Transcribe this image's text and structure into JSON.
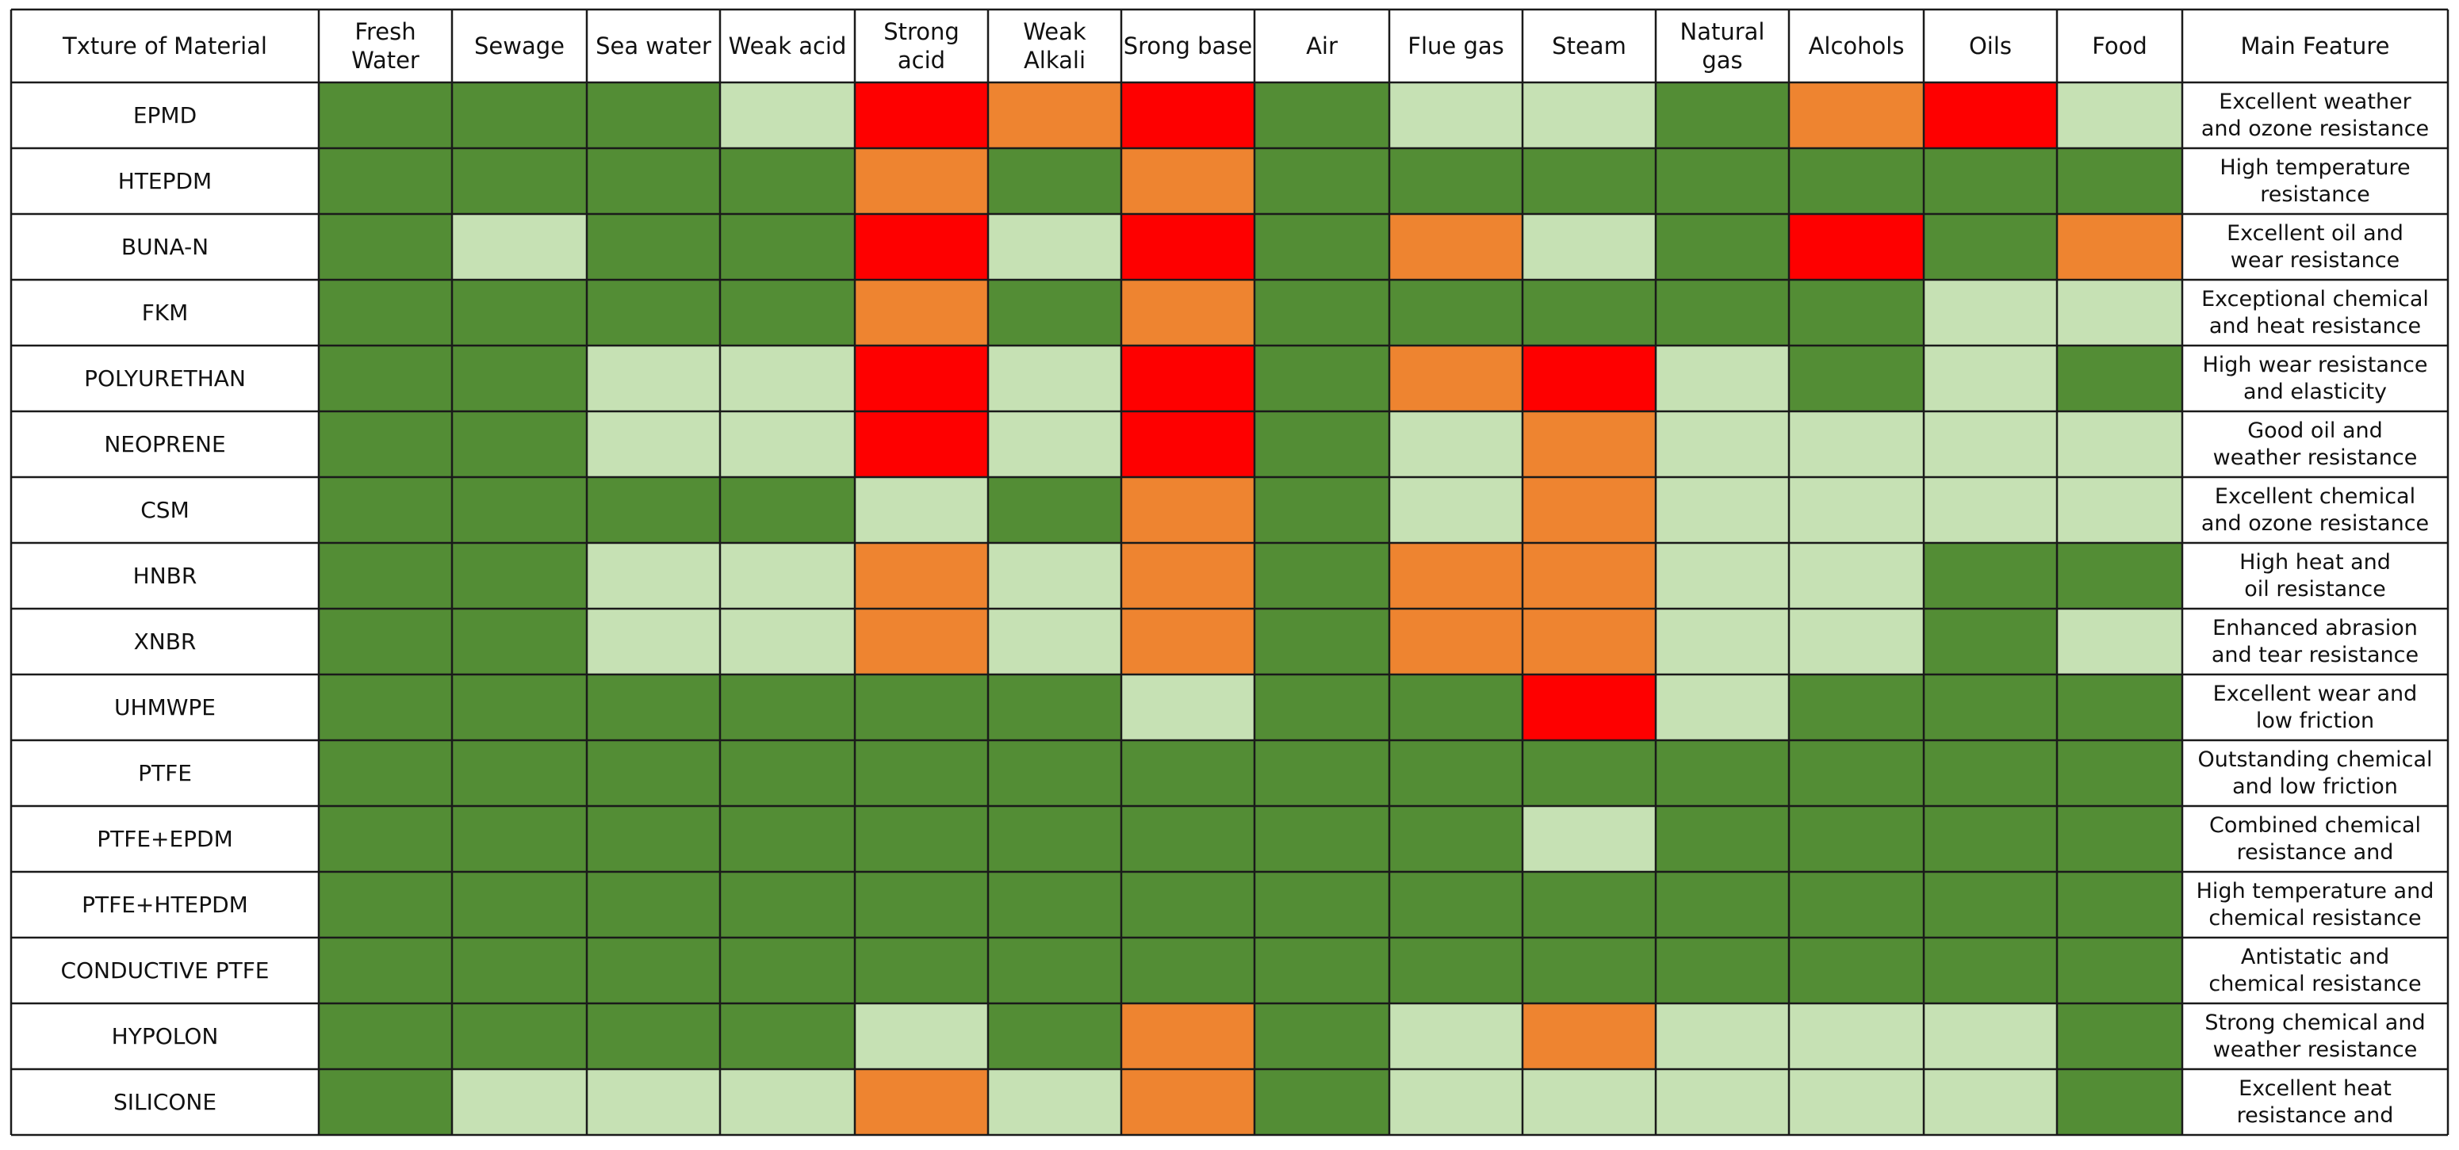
{
  "chart_data": {
    "type": "heatmap",
    "corner_header": "Txture of Material",
    "columns": [
      [
        "Fresh",
        "Water"
      ],
      [
        "Sewage"
      ],
      [
        "Sea water"
      ],
      [
        "Weak acid"
      ],
      [
        "Strong",
        "acid"
      ],
      [
        "Weak",
        "Alkali"
      ],
      [
        "Srong base"
      ],
      [
        "Air"
      ],
      [
        "Flue gas"
      ],
      [
        "Steam"
      ],
      [
        "Natural",
        "gas"
      ],
      [
        "Alcohols"
      ],
      [
        "Oils"
      ],
      [
        "Food"
      ]
    ],
    "feature_header": "Main Feature",
    "legend_colors": {
      "G": "#538d35",
      "L": "#c6e1b4",
      "O": "#ee8430",
      "R": "#fe0000"
    },
    "rows": [
      {
        "material": "EPMD",
        "ratings": [
          "G",
          "G",
          "G",
          "L",
          "R",
          "O",
          "R",
          "G",
          "L",
          "L",
          "G",
          "O",
          "R",
          "L"
        ],
        "feature": [
          "Excellent weather",
          "and ozone resistance"
        ]
      },
      {
        "material": "HTEPDM",
        "ratings": [
          "G",
          "G",
          "G",
          "G",
          "O",
          "G",
          "O",
          "G",
          "G",
          "G",
          "G",
          "G",
          "G",
          "G"
        ],
        "feature": [
          "High temperature",
          "resistance"
        ]
      },
      {
        "material": "BUNA-N",
        "ratings": [
          "G",
          "L",
          "G",
          "G",
          "R",
          "L",
          "R",
          "G",
          "O",
          "L",
          "G",
          "R",
          "G",
          "O"
        ],
        "feature": [
          "Excellent oil and",
          "wear resistance"
        ]
      },
      {
        "material": "FKM",
        "ratings": [
          "G",
          "G",
          "G",
          "G",
          "O",
          "G",
          "O",
          "G",
          "G",
          "G",
          "G",
          "G",
          "L",
          "L"
        ],
        "feature": [
          "Exceptional chemical",
          "and heat resistance"
        ]
      },
      {
        "material": "POLYURETHAN",
        "ratings": [
          "G",
          "G",
          "L",
          "L",
          "R",
          "L",
          "R",
          "G",
          "O",
          "R",
          "L",
          "G",
          "L",
          "G"
        ],
        "feature": [
          "High wear resistance",
          "and elasticity"
        ]
      },
      {
        "material": "NEOPRENE",
        "ratings": [
          "G",
          "G",
          "L",
          "L",
          "R",
          "L",
          "R",
          "G",
          "L",
          "O",
          "L",
          "L",
          "L",
          "L"
        ],
        "feature": [
          "Good oil and",
          "weather resistance"
        ]
      },
      {
        "material": "CSM",
        "ratings": [
          "G",
          "G",
          "G",
          "G",
          "L",
          "G",
          "O",
          "G",
          "L",
          "O",
          "L",
          "L",
          "L",
          "L"
        ],
        "feature": [
          "Excellent chemical",
          "and ozone resistance"
        ]
      },
      {
        "material": "HNBR",
        "ratings": [
          "G",
          "G",
          "L",
          "L",
          "O",
          "L",
          "O",
          "G",
          "O",
          "O",
          "L",
          "L",
          "G",
          "G"
        ],
        "feature": [
          "High heat and",
          "oil resistance"
        ]
      },
      {
        "material": "XNBR",
        "ratings": [
          "G",
          "G",
          "L",
          "L",
          "O",
          "L",
          "O",
          "G",
          "O",
          "O",
          "L",
          "L",
          "G",
          "L"
        ],
        "feature": [
          "Enhanced abrasion",
          "and tear resistance"
        ]
      },
      {
        "material": "UHMWPE",
        "ratings": [
          "G",
          "G",
          "G",
          "G",
          "G",
          "G",
          "L",
          "G",
          "G",
          "R",
          "L",
          "G",
          "G",
          "G"
        ],
        "feature": [
          "Excellent wear and",
          "low friction"
        ]
      },
      {
        "material": "PTFE",
        "ratings": [
          "G",
          "G",
          "G",
          "G",
          "G",
          "G",
          "G",
          "G",
          "G",
          "G",
          "G",
          "G",
          "G",
          "G"
        ],
        "feature": [
          "Outstanding chemical",
          "and low friction"
        ]
      },
      {
        "material": "PTFE+EPDM",
        "ratings": [
          "G",
          "G",
          "G",
          "G",
          "G",
          "G",
          "G",
          "G",
          "G",
          "L",
          "G",
          "G",
          "G",
          "G"
        ],
        "feature": [
          "Combined chemical",
          "resistance and"
        ]
      },
      {
        "material": "PTFE+HTEPDM",
        "ratings": [
          "G",
          "G",
          "G",
          "G",
          "G",
          "G",
          "G",
          "G",
          "G",
          "G",
          "G",
          "G",
          "G",
          "G"
        ],
        "feature": [
          "High temperature and",
          "chemical resistance"
        ]
      },
      {
        "material": "CONDUCTIVE PTFE",
        "ratings": [
          "G",
          "G",
          "G",
          "G",
          "G",
          "G",
          "G",
          "G",
          "G",
          "G",
          "G",
          "G",
          "G",
          "G"
        ],
        "feature": [
          "Antistatic and",
          "chemical resistance"
        ]
      },
      {
        "material": "HYPOLON",
        "ratings": [
          "G",
          "G",
          "G",
          "G",
          "L",
          "G",
          "O",
          "G",
          "L",
          "O",
          "L",
          "L",
          "L",
          "G"
        ],
        "feature": [
          "Strong chemical and",
          "weather resistance"
        ]
      },
      {
        "material": "SILICONE",
        "ratings": [
          "G",
          "L",
          "L",
          "L",
          "O",
          "L",
          "O",
          "G",
          "L",
          "L",
          "L",
          "L",
          "L",
          "G"
        ],
        "feature": [
          "Excellent heat",
          "resistance and"
        ]
      }
    ]
  }
}
